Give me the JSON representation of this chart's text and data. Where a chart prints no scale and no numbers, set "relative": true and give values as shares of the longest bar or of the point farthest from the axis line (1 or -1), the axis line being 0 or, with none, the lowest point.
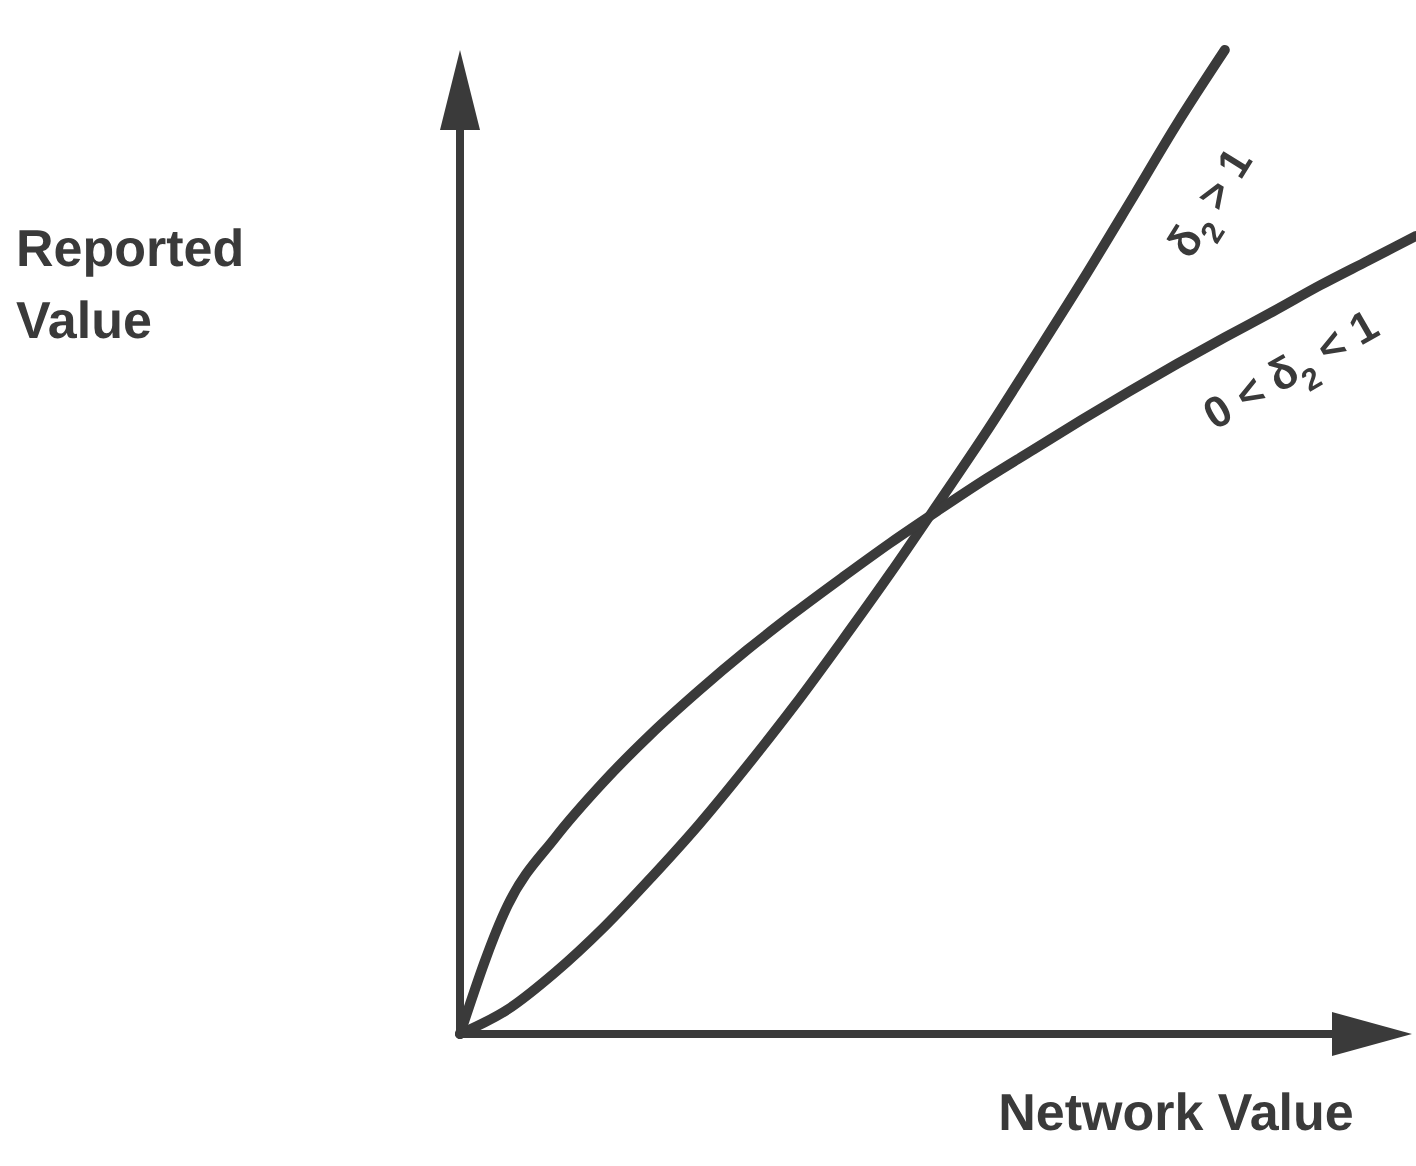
{
  "chart_data": {
    "type": "line",
    "relative": true,
    "xlabel": "Network Value",
    "ylabel": "Reported Value",
    "categories": [
      null,
      null,
      null,
      null,
      null,
      null,
      null,
      null,
      null,
      null,
      null,
      null,
      null,
      null,
      null,
      null,
      null,
      null,
      null,
      null,
      null
    ],
    "series": [
      {
        "name": "δ$_{2}$ > 1",
        "color": "#3a3a3a",
        "values": [
          0,
          0.025,
          0.063,
          0.108,
          0.159,
          0.213,
          0.272,
          0.334,
          0.4,
          0.468,
          0.539,
          0.611,
          0.687,
          0.764,
          0.844,
          0.925,
          1,
          null,
          null,
          null,
          null
        ]
      },
      {
        "name": "0 < δ$_{2}$ < 1",
        "color": "#3a3a3a",
        "values": [
          0,
          0.131,
          0.2,
          0.256,
          0.305,
          0.349,
          0.39,
          0.428,
          0.464,
          0.499,
          0.532,
          0.564,
          0.594,
          0.624,
          0.653,
          0.681,
          0.708,
          0.734,
          0.761,
          0.786,
          0.811
        ]
      }
    ]
  }
}
